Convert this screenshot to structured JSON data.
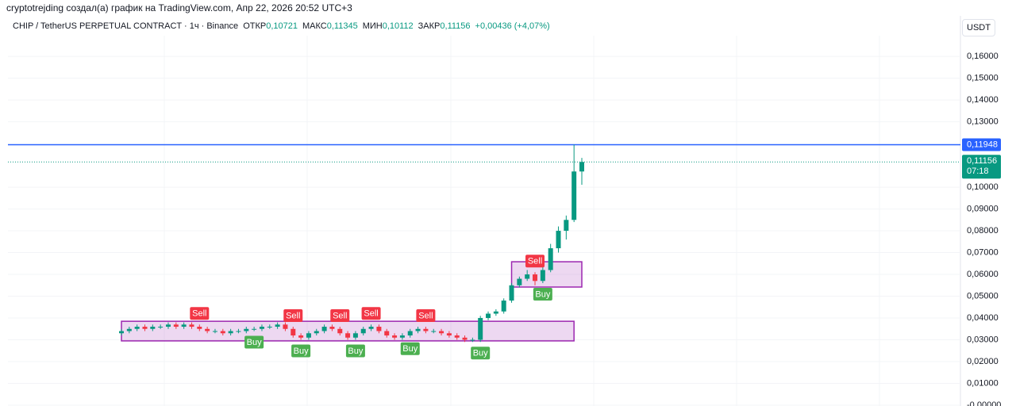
{
  "header": {
    "credit": "cryptotrejding создал(а) график на TradingView.com, Апр 22, 2026 20:52 UTC+3"
  },
  "chart_data": {
    "type": "candlestick",
    "title": "CHIP / TetherUS PERPETUAL CONTRACT · 1ч · Binance",
    "ohlc_legend": [
      {
        "label": "ОТКР",
        "value": "0,10721"
      },
      {
        "label": "МАКС",
        "value": "0,11345"
      },
      {
        "label": "МИН",
        "value": "0,10112"
      },
      {
        "label": "ЗАКР",
        "value": "0,11156"
      }
    ],
    "change": "+0,00436 (+4,07%)",
    "currency": "USDT",
    "up_color": "#089981",
    "down_color": "#f23645",
    "open": [
      0.033,
      0.034,
      0.035,
      0.036,
      0.035,
      0.036,
      0.036,
      0.037,
      0.036,
      0.037,
      0.036,
      0.035,
      0.034,
      0.034,
      0.033,
      0.034,
      0.034,
      0.035,
      0.035,
      0.036,
      0.036,
      0.037,
      0.035,
      0.032,
      0.031,
      0.033,
      0.034,
      0.036,
      0.035,
      0.033,
      0.031,
      0.033,
      0.035,
      0.036,
      0.034,
      0.032,
      0.031,
      0.032,
      0.034,
      0.035,
      0.034,
      0.034,
      0.033,
      0.032,
      0.031,
      0.03,
      0.03,
      0.04,
      0.042,
      0.043,
      0.048,
      0.055,
      0.058,
      0.06,
      0.057,
      0.062,
      0.072,
      0.08,
      0.085,
      0.10721
    ],
    "high": [
      0.035,
      0.036,
      0.037,
      0.037,
      0.037,
      0.037,
      0.038,
      0.038,
      0.038,
      0.038,
      0.037,
      0.036,
      0.035,
      0.035,
      0.035,
      0.035,
      0.036,
      0.036,
      0.037,
      0.037,
      0.038,
      0.038,
      0.036,
      0.033,
      0.034,
      0.035,
      0.037,
      0.037,
      0.036,
      0.034,
      0.034,
      0.036,
      0.037,
      0.037,
      0.035,
      0.033,
      0.033,
      0.035,
      0.036,
      0.036,
      0.035,
      0.035,
      0.034,
      0.033,
      0.032,
      0.031,
      0.041,
      0.043,
      0.044,
      0.049,
      0.056,
      0.059,
      0.062,
      0.061,
      0.064,
      0.074,
      0.082,
      0.087,
      0.1195,
      0.11345
    ],
    "low": [
      0.032,
      0.033,
      0.034,
      0.034,
      0.034,
      0.035,
      0.035,
      0.035,
      0.035,
      0.035,
      0.034,
      0.033,
      0.033,
      0.032,
      0.032,
      0.033,
      0.033,
      0.034,
      0.034,
      0.035,
      0.035,
      0.034,
      0.031,
      0.03,
      0.03,
      0.032,
      0.033,
      0.034,
      0.032,
      0.03,
      0.03,
      0.032,
      0.034,
      0.033,
      0.031,
      0.03,
      0.03,
      0.031,
      0.033,
      0.033,
      0.033,
      0.032,
      0.031,
      0.03,
      0.029,
      0.029,
      0.029,
      0.039,
      0.041,
      0.042,
      0.047,
      0.054,
      0.057,
      0.055,
      0.056,
      0.061,
      0.07,
      0.076,
      0.084,
      0.10112
    ],
    "close": [
      0.034,
      0.035,
      0.036,
      0.035,
      0.036,
      0.036,
      0.037,
      0.036,
      0.037,
      0.036,
      0.035,
      0.034,
      0.034,
      0.033,
      0.034,
      0.034,
      0.035,
      0.035,
      0.036,
      0.036,
      0.037,
      0.035,
      0.032,
      0.031,
      0.033,
      0.034,
      0.036,
      0.035,
      0.033,
      0.031,
      0.033,
      0.035,
      0.036,
      0.034,
      0.032,
      0.031,
      0.032,
      0.034,
      0.035,
      0.034,
      0.034,
      0.033,
      0.032,
      0.031,
      0.03,
      0.03,
      0.04,
      0.042,
      0.043,
      0.048,
      0.055,
      0.058,
      0.06,
      0.057,
      0.062,
      0.072,
      0.08,
      0.085,
      0.10721,
      0.11156
    ],
    "ylim": [
      0,
      0.1695
    ],
    "yticks": [
      {
        "value": 0,
        "label": "-0,00000"
      },
      {
        "value": 0.01,
        "label": "0,01000"
      },
      {
        "value": 0.02,
        "label": "0,02000"
      },
      {
        "value": 0.03,
        "label": "0,03000"
      },
      {
        "value": 0.04,
        "label": "0,04000"
      },
      {
        "value": 0.05,
        "label": "0,05000"
      },
      {
        "value": 0.06,
        "label": "0,06000"
      },
      {
        "value": 0.07,
        "label": "0,07000"
      },
      {
        "value": 0.08,
        "label": "0,08000"
      },
      {
        "value": 0.09,
        "label": "0,09000"
      },
      {
        "value": 0.1,
        "label": "0,10000"
      },
      {
        "value": 0.13,
        "label": "0,13000"
      },
      {
        "value": 0.14,
        "label": "0,14000"
      },
      {
        "value": 0.15,
        "label": "0,15000"
      },
      {
        "value": 0.16,
        "label": "0,16000"
      }
    ],
    "zones": [
      {
        "from": 0,
        "to": 58,
        "top": 0.0385,
        "bottom": 0.0295,
        "color": "#9c27b0"
      },
      {
        "from": 50,
        "to": 59,
        "top": 0.0658,
        "bottom": 0.0542,
        "color": "#9c27b0"
      }
    ],
    "signals": [
      {
        "label": "Sell",
        "index": 10
      },
      {
        "label": "Sell",
        "index": 22
      },
      {
        "label": "Sell",
        "index": 28
      },
      {
        "label": "Sell",
        "index": 32
      },
      {
        "label": "Sell",
        "index": 39
      },
      {
        "label": "Sell",
        "index": 53
      },
      {
        "label": "Buy",
        "index": 17
      },
      {
        "label": "Buy",
        "index": 23
      },
      {
        "label": "Buy",
        "index": 30
      },
      {
        "label": "Buy",
        "index": 37
      },
      {
        "label": "Buy",
        "index": 46
      },
      {
        "label": "Buy",
        "index": 54
      }
    ],
    "hline": {
      "value": 0.11948,
      "label": "0,11948",
      "color": "#2962ff"
    },
    "last_price": {
      "value": 0.11156,
      "label": "0,11156",
      "countdown": "07:18",
      "color": "#089981"
    }
  }
}
